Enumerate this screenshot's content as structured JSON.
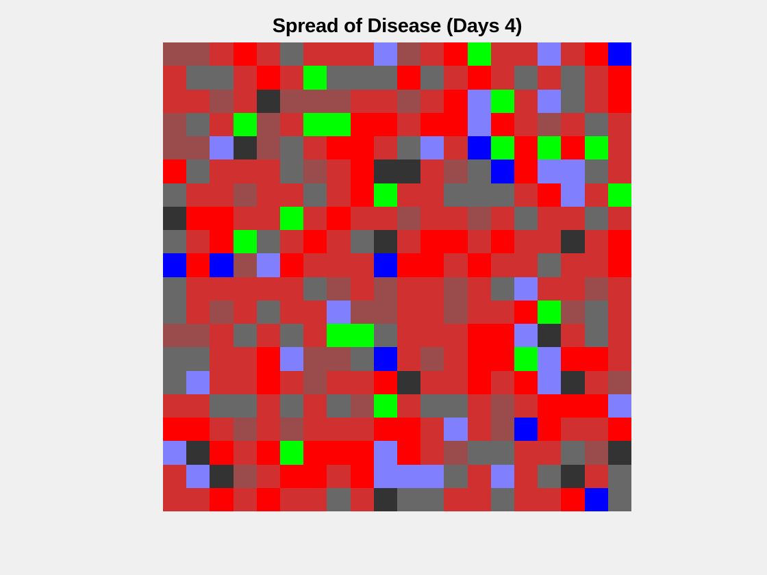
{
  "chart_data": {
    "type": "heatmap",
    "title": "Spread of Disease (Days 4)",
    "rows": 20,
    "cols": 20,
    "palette": {
      "I": "#d03030",
      "R": "#ff0000",
      "M": "#9a4b4b",
      "G": "#686868",
      "D": "#333333",
      "L": "#8080ff",
      "B": "#0000ff",
      "N": "#00ff00"
    },
    "cells": [
      "MMIRIGIIILMIRNIILIRB",
      "IGGIRINGGGRGIRIGIGIR",
      "IIMIDMMMIIMIRLNILGIR",
      "MGINMINNRRIRRLRIMIGI",
      "MMLDMGIRRIGLIBNRNRNI",
      "RGIIIGMIRDDIMGBRLLGI",
      "GIIMIIGIRNIIGGGIRLIN",
      "DRRIINIRIIMIIMIGIIGI",
      "GIRNGIRIGDIRRIRIIDIR",
      "BRBMLRIIIBRRIRIIGIIR",
      "GIIIIIGMIMIIMIGLIIMI",
      "GIMIGIILMMIIMIIRNMGI",
      "MMIGIGINNGIIIRRLDIGI",
      "GGIIRLMMGBIMIRRNLRRI",
      "GLIIRIMIIRDIIRIRLDIM",
      "IIGGIGIGMNIGGIMIRRRL",
      "RRIMIMIIIRRILIMBRIIR",
      "LDRIRNRRRLRIMGGIIGMD",
      "ILDMIRRIRLLLGILIGDIG",
      "IIRIRIIGIDGGIIGIIRBG"
    ]
  }
}
